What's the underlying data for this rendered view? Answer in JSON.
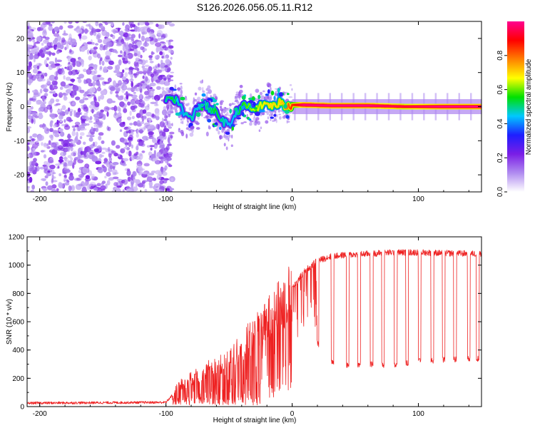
{
  "title": "S126.2026.056.05.11.R12",
  "colorbar": {
    "label": "Normalized spectral amplitude",
    "ticks": [
      "0.0",
      "0.2",
      "0.4",
      "0.6",
      "0.8"
    ],
    "tick_values": [
      0.0,
      0.2,
      0.4,
      0.6,
      0.8
    ],
    "range": [
      0,
      1
    ],
    "stops": [
      "#ffffff",
      "#b08cf0",
      "#7a1ee6",
      "#1e1eff",
      "#00c8ff",
      "#00e000",
      "#ffff00",
      "#ff8000",
      "#ff0000",
      "#ff0090"
    ]
  },
  "colors": {
    "snr_line": "#ee2222",
    "frame": "#000000"
  },
  "chart_data": [
    {
      "type": "heatmap",
      "name": "spectrogram",
      "xlabel": "Height of straight line (km)",
      "ylabel": "Frequency (Hz)",
      "xlim": [
        -210,
        150
      ],
      "ylim": [
        -25,
        25
      ],
      "xticks": [
        -200,
        -100,
        0,
        100
      ],
      "xtick_labels": [
        "-200",
        "-100",
        "0",
        "100"
      ],
      "yticks": [
        -20,
        -10,
        0,
        10,
        20
      ],
      "ytick_labels": [
        "-20",
        "-10",
        "0",
        "10",
        "20"
      ],
      "ridge": {
        "x": [
          -100,
          -95,
          -90,
          -85,
          -80,
          -75,
          -70,
          -65,
          -60,
          -55,
          -50,
          -45,
          -40,
          -35,
          -30,
          -25,
          -20,
          -15,
          -10,
          -5,
          0,
          10,
          30,
          60,
          90,
          120,
          150
        ],
        "freq": [
          2,
          3,
          1,
          -2,
          -4,
          0,
          1,
          -1,
          -2,
          -4,
          -6,
          -2,
          0,
          0,
          -1,
          0,
          1,
          0,
          1,
          0,
          0.5,
          0.5,
          0.3,
          0.3,
          0,
          0,
          0
        ],
        "amplitude": [
          0.45,
          0.5,
          0.45,
          0.4,
          0.45,
          0.4,
          0.45,
          0.45,
          0.5,
          0.45,
          0.4,
          0.4,
          0.5,
          0.55,
          0.6,
          0.6,
          0.65,
          0.65,
          0.65,
          0.7,
          0.8,
          0.95,
          0.95,
          0.95,
          0.9,
          0.95,
          0.95
        ]
      }
    },
    {
      "type": "line",
      "name": "snr",
      "xlabel": "Height of straight line (km)",
      "ylabel": "SNR (10 * v/v)",
      "xlim": [
        -210,
        150
      ],
      "ylim": [
        0,
        1200
      ],
      "xticks": [
        -200,
        -100,
        0,
        100
      ],
      "xtick_labels": [
        "-200",
        "-100",
        "0",
        "100"
      ],
      "yticks": [
        0,
        200,
        400,
        600,
        800,
        1000,
        1200
      ],
      "ytick_labels": [
        "0",
        "200",
        "400",
        "600",
        "800",
        "1000",
        "1200"
      ],
      "envelope": {
        "x": [
          -210,
          -100,
          -95,
          -90,
          -80,
          -70,
          -60,
          -50,
          -40,
          -30,
          -20,
          -10,
          0,
          10,
          20,
          30,
          40,
          60,
          80,
          100,
          120,
          150
        ],
        "y": [
          25,
          30,
          80,
          150,
          200,
          250,
          280,
          330,
          420,
          520,
          620,
          720,
          840,
          960,
          1030,
          1060,
          1070,
          1080,
          1090,
          1090,
          1085,
          1080
        ]
      },
      "floor": {
        "x": [
          0,
          10,
          20,
          30,
          40,
          60,
          80,
          100,
          120,
          150
        ],
        "y": [
          520,
          500,
          450,
          320,
          290,
          300,
          290,
          320,
          330,
          340
        ]
      },
      "dropouts_x": [
        20,
        32,
        44,
        53,
        63,
        72,
        82,
        91,
        101,
        111,
        120,
        129,
        140,
        147
      ]
    }
  ]
}
